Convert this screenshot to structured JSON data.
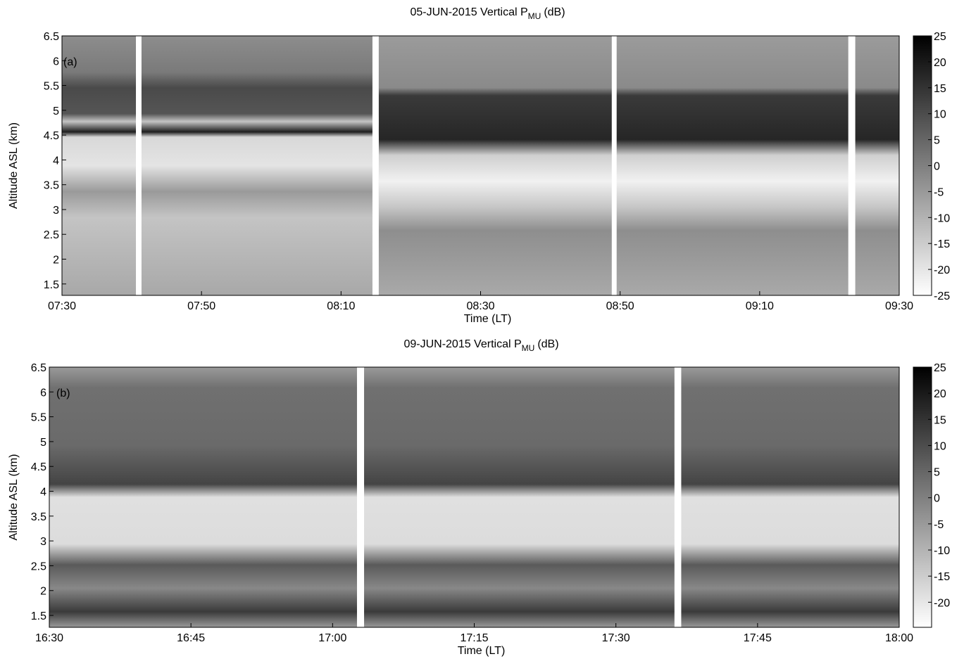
{
  "chart_data": [
    {
      "type": "heatmap",
      "panel_label": "(a)",
      "title": [
        "05-JUN-2015 Vertical P",
        "MU",
        "(dB)"
      ],
      "x_label": "Time (LT)",
      "y_label": "Altitude ASL (km)",
      "xlim": [
        "07:30",
        "09:30"
      ],
      "xticks": [
        "07:30",
        "07:50",
        "08:10",
        "08:30",
        "08:50",
        "09:10",
        "09:30"
      ],
      "ylim": [
        1.27,
        6.5
      ],
      "yticks": [
        1.5,
        2,
        2.5,
        3,
        3.5,
        4,
        4.5,
        5,
        5.5,
        6,
        6.5
      ],
      "clim": [
        -25,
        25
      ],
      "cticks": [
        -25,
        -20,
        -15,
        -10,
        -5,
        0,
        5,
        10,
        15,
        20,
        25
      ],
      "colormap": [
        "#ffffff",
        "#000000"
      ],
      "gaps": [
        [
          "07:40:36",
          "07:41:24"
        ],
        [
          "08:14:30",
          "08:15:24"
        ],
        [
          "08:48:48",
          "08:49:30"
        ],
        [
          "09:22:42",
          "09:23:42"
        ]
      ]
    },
    {
      "type": "heatmap",
      "panel_label": "(b)",
      "title": [
        "09-JUN-2015 Vertical P",
        "MU",
        "(dB)"
      ],
      "x_label": "Time (LT)",
      "y_label": "Altitude ASL (km)",
      "xlim": [
        "16:30",
        "18:00"
      ],
      "xticks": [
        "16:30",
        "16:45",
        "17:00",
        "17:15",
        "17:30",
        "17:45",
        "18:00"
      ],
      "ylim": [
        1.26,
        6.5
      ],
      "yticks": [
        1.5,
        2,
        2.5,
        3,
        3.5,
        4,
        4.5,
        5,
        5.5,
        6,
        6.5
      ],
      "clim": [
        -24.8,
        25
      ],
      "cticks": [
        -20,
        -15,
        -10,
        -5,
        0,
        5,
        10,
        15,
        20,
        25
      ],
      "colormap": [
        "#ffffff",
        "#000000"
      ],
      "gaps": [
        [
          "17:02:35",
          "17:03:20"
        ],
        [
          "17:36:12",
          "17:36:55"
        ]
      ]
    }
  ]
}
